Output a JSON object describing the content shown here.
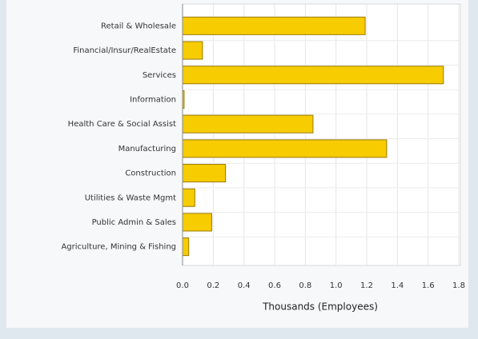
{
  "chart_data": {
    "type": "barh",
    "categories": [
      "Retail & Wholesale",
      "Financial/Insur/RealEstate",
      "Services",
      "Information",
      "Health Care & Social Assist",
      "Manufacturing",
      "Construction",
      "Utilities & Waste Mgmt",
      "Public Admin & Sales",
      "Agriculture, Mining & Fishing"
    ],
    "values": [
      1.19,
      0.13,
      1.7,
      0.01,
      0.85,
      1.33,
      0.28,
      0.08,
      0.19,
      0.04
    ],
    "color": "#f7cc00",
    "xlabel": "Thousands (Employees)",
    "xlim": [
      0,
      1.8
    ],
    "xticks": [
      {
        "value": 0,
        "label": "0.0"
      },
      0.2,
      0.4,
      0.6,
      0.8,
      {
        "value": 1,
        "label": "1.0"
      },
      1.2,
      1.4,
      1.6,
      1.8
    ],
    "grid": true
  }
}
